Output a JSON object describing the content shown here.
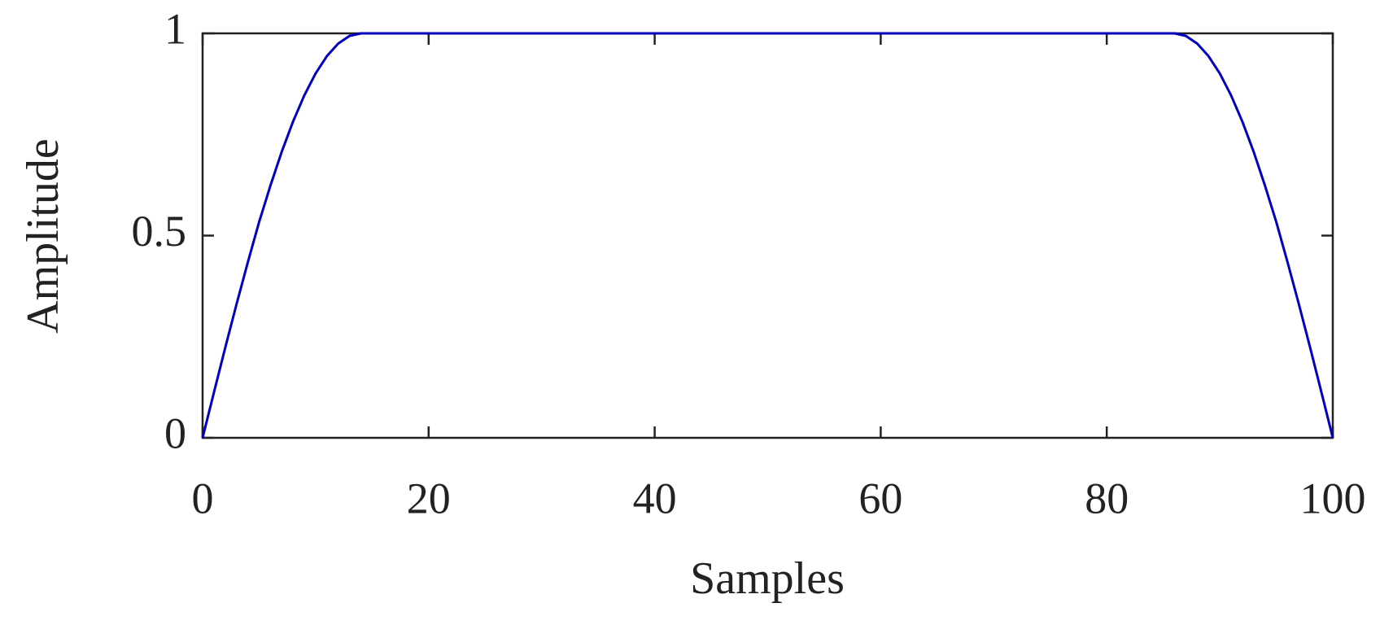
{
  "chart_data": {
    "type": "line",
    "xlabel": "Samples",
    "ylabel": "Amplitude",
    "x": [
      0,
      1,
      2,
      3,
      4,
      5,
      6,
      7,
      8,
      9,
      10,
      11,
      12,
      13,
      14,
      86,
      87,
      88,
      89,
      90,
      91,
      92,
      93,
      94,
      95,
      96,
      97,
      98,
      99,
      100
    ],
    "series": [
      {
        "color": "#0000c0",
        "values": [
          0,
          0.112,
          0.2225,
          0.3302,
          0.4339,
          0.5336,
          0.6235,
          0.7071,
          0.7818,
          0.8467,
          0.901,
          0.9439,
          0.9749,
          0.9937,
          1,
          1,
          0.9937,
          0.9749,
          0.9439,
          0.901,
          0.8467,
          0.7818,
          0.7071,
          0.6235,
          0.5336,
          0.4339,
          0.3302,
          0.2225,
          0.112,
          0
        ]
      }
    ],
    "xlim": [
      0,
      100
    ],
    "xticks": [
      0,
      20,
      40,
      60,
      80,
      100
    ],
    "ylim": [
      0,
      1
    ],
    "yticks": [
      0,
      {
        "value": 0.5,
        "label": "0.5"
      },
      1
    ],
    "grid": false
  }
}
